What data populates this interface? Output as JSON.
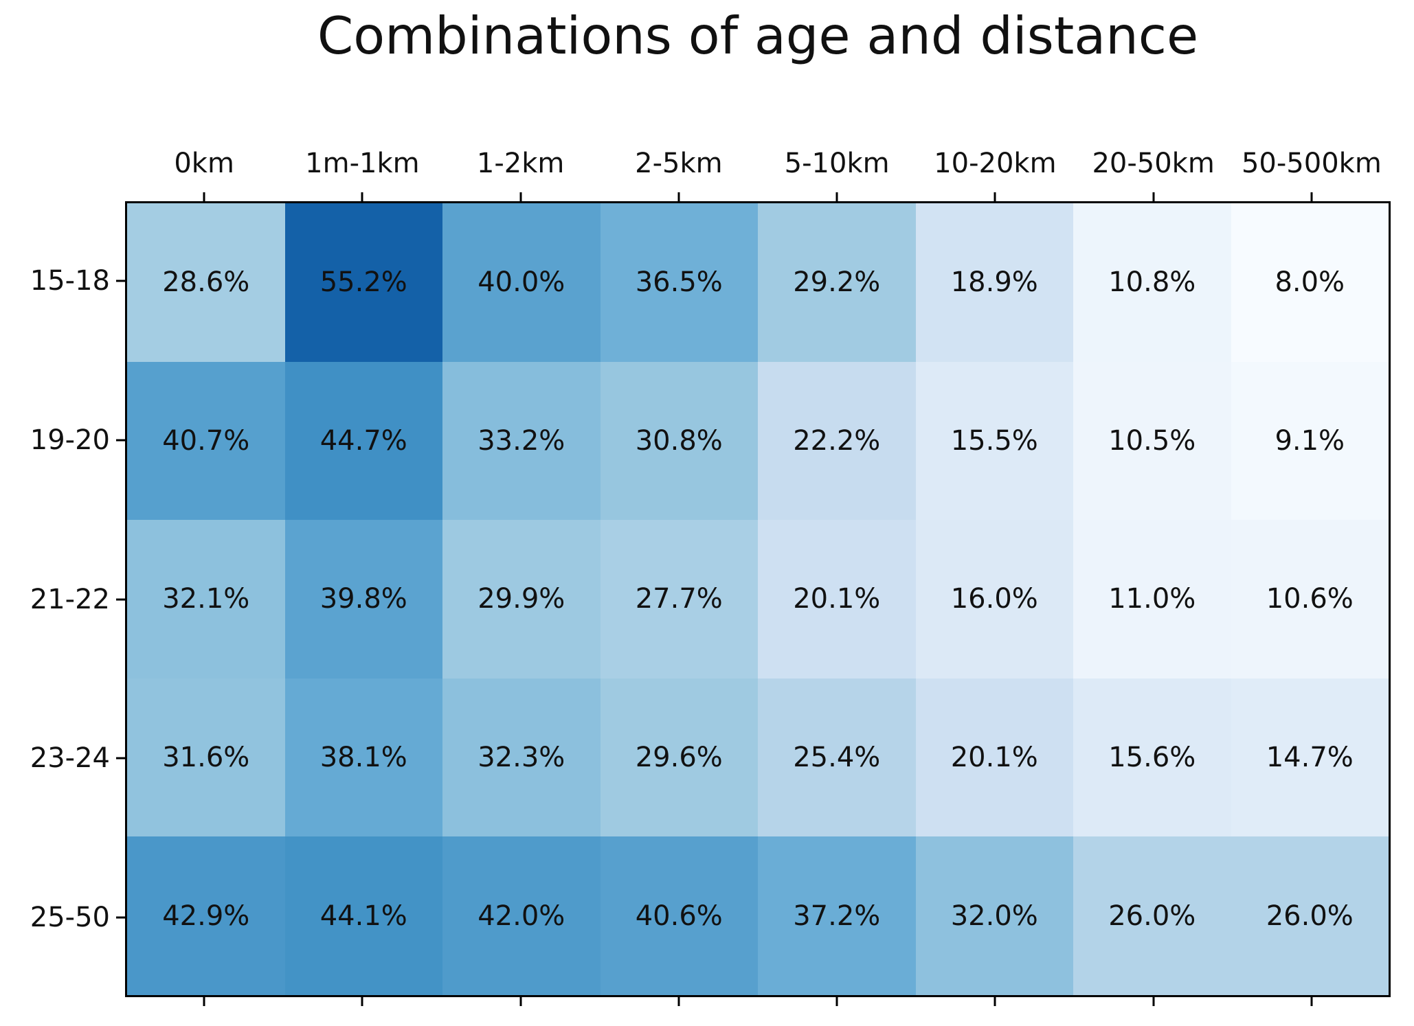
{
  "chart_data": {
    "type": "heatmap",
    "title": "Combinations of age and distance",
    "xlabel": "",
    "ylabel": "",
    "categories_x": [
      "0km",
      "1m-1km",
      "1-2km",
      "2-5km",
      "5-10km",
      "10-20km",
      "20-50km",
      "50-500km"
    ],
    "categories_y": [
      "15-18",
      "19-20",
      "21-22",
      "23-24",
      "25-50"
    ],
    "values_percent": [
      [
        28.6,
        55.2,
        40.0,
        36.5,
        29.2,
        18.9,
        10.8,
        8.0
      ],
      [
        40.7,
        44.7,
        33.2,
        30.8,
        22.2,
        15.5,
        10.5,
        9.1
      ],
      [
        32.1,
        39.8,
        29.9,
        27.7,
        20.1,
        16.0,
        11.0,
        10.6
      ],
      [
        31.6,
        38.1,
        32.3,
        29.6,
        25.4,
        20.1,
        15.6,
        14.7
      ],
      [
        42.9,
        44.1,
        42.0,
        40.6,
        37.2,
        32.0,
        26.0,
        26.0
      ]
    ],
    "value_suffix": "%",
    "value_decimals": 1,
    "legend": "none",
    "grid": "off",
    "colormap": {
      "name": "Blues",
      "anchors": [
        "#f7fbff",
        "#deebf7",
        "#c6dbef",
        "#9ecae1",
        "#6baed6",
        "#4292c6",
        "#2171b5",
        "#08519c",
        "#08306b"
      ],
      "norm_min": 8,
      "norm_max": 66
    },
    "colors": {
      "cell_text": "#111111",
      "axis_text": "#111111",
      "border": "#000000",
      "background": "#ffffff",
      "min_cell": "#f7fbff",
      "max_cell": "#1461a8"
    }
  }
}
